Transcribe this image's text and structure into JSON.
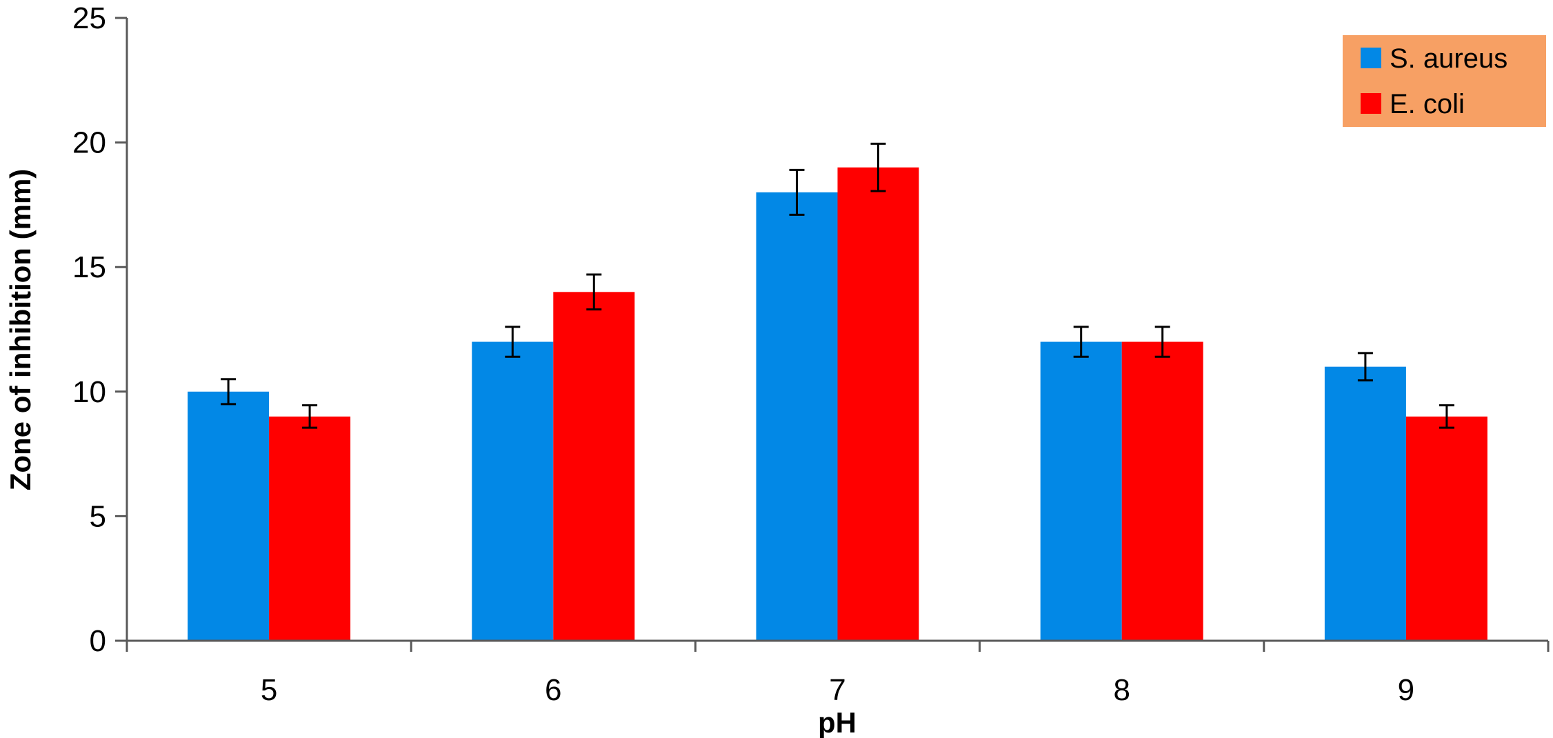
{
  "chart_data": {
    "type": "bar",
    "title": "",
    "xlabel": "pH",
    "ylabel": "Zone of inhibition (mm)",
    "ylim": [
      0,
      25
    ],
    "yticks": [
      "0",
      "5",
      "10",
      "15",
      "20",
      "25"
    ],
    "categories": [
      "5",
      "6",
      "7",
      "8",
      "9"
    ],
    "series": [
      {
        "name": "S. aureus",
        "color": "#0288E6",
        "values": [
          10,
          12,
          18,
          12,
          11
        ],
        "errors": [
          0.5,
          0.6,
          0.9,
          0.6,
          0.55
        ]
      },
      {
        "name": "E. coli",
        "color": "#FF0000",
        "values": [
          9,
          14,
          19,
          12,
          9
        ],
        "errors": [
          0.45,
          0.7,
          0.95,
          0.6,
          0.45
        ]
      }
    ],
    "legend": {
      "placement": "top-right",
      "background": "#F7A064"
    },
    "grid": false
  }
}
